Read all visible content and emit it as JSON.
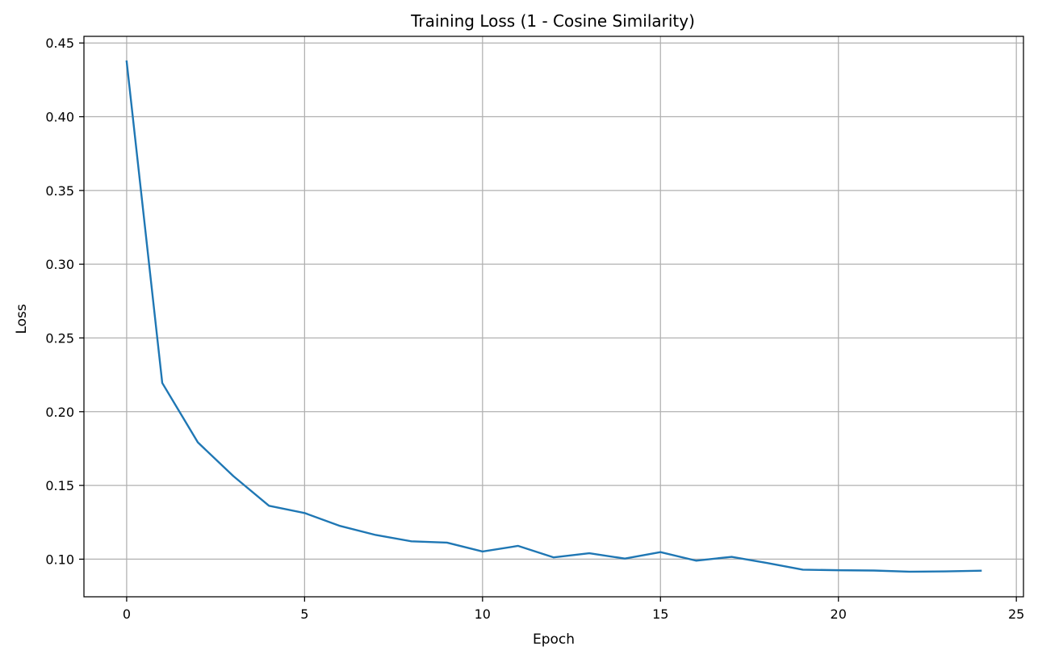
{
  "chart_data": {
    "type": "line",
    "title": "Training Loss (1 - Cosine Similarity)",
    "xlabel": "Epoch",
    "ylabel": "Loss",
    "xlim": [
      -1.2,
      25.2
    ],
    "ylim": [
      0.0745,
      0.4545
    ],
    "xticks": [
      0,
      5,
      10,
      15,
      20,
      25
    ],
    "yticks": [
      0.1,
      0.15,
      0.2,
      0.25,
      0.3,
      0.35,
      0.4,
      0.45
    ],
    "xtick_labels": [
      "0",
      "5",
      "10",
      "15",
      "20",
      "25"
    ],
    "ytick_labels": [
      "0.10",
      "0.15",
      "0.20",
      "0.25",
      "0.30",
      "0.35",
      "0.40",
      "0.45"
    ],
    "grid": true,
    "series": [
      {
        "color": "#1f77b4",
        "x": [
          0,
          1,
          2,
          3,
          4,
          5,
          6,
          7,
          8,
          9,
          10,
          11,
          12,
          13,
          14,
          15,
          16,
          17,
          18,
          19,
          20,
          21,
          22,
          23,
          24
        ],
        "y": [
          0.4375,
          0.2195,
          0.1792,
          0.1563,
          0.1362,
          0.1313,
          0.1225,
          0.1164,
          0.1121,
          0.1112,
          0.1052,
          0.109,
          0.1012,
          0.104,
          0.1004,
          0.1048,
          0.099,
          0.1016,
          0.0974,
          0.0929,
          0.0925,
          0.0923,
          0.0915,
          0.0917,
          0.0922
        ]
      }
    ]
  }
}
